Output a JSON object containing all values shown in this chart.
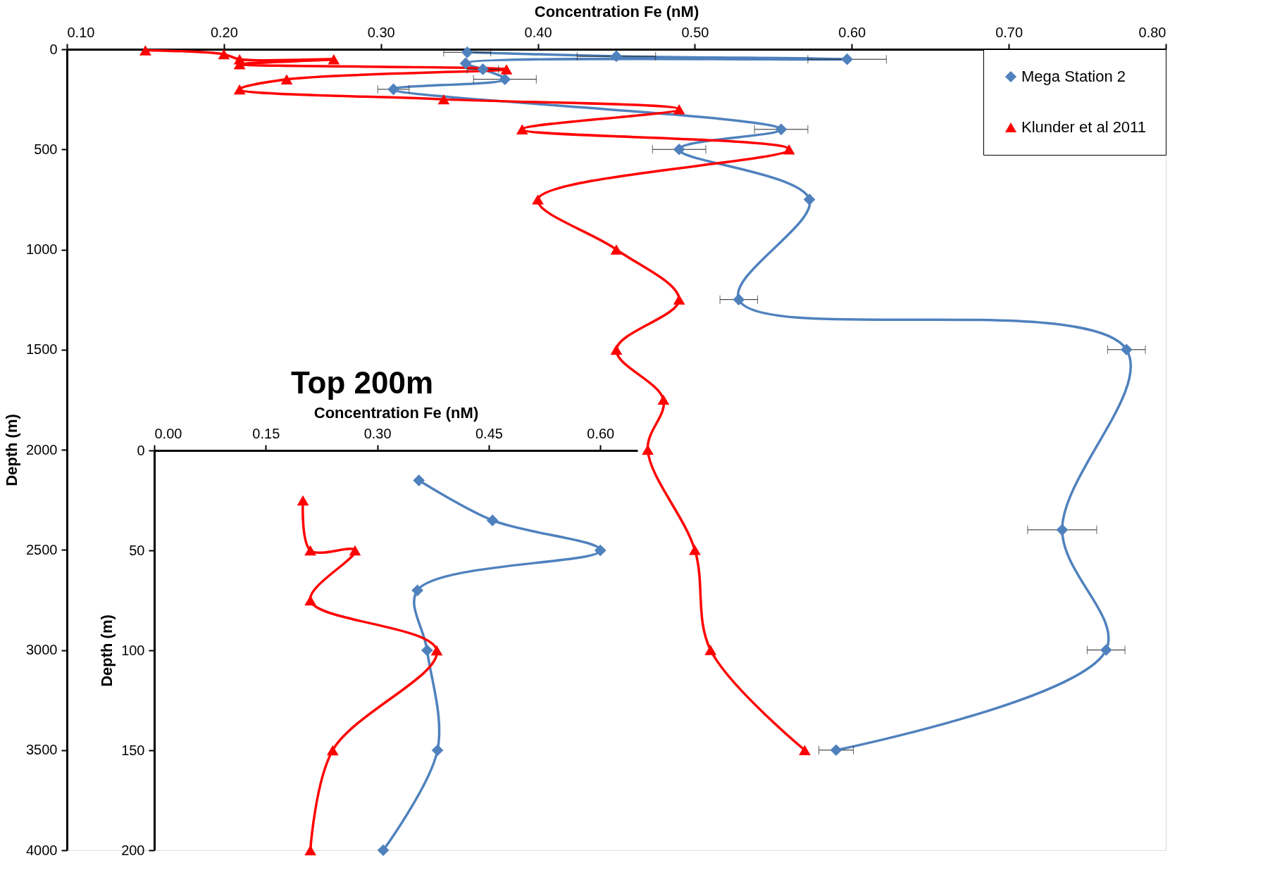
{
  "chart_data": [
    {
      "type": "line",
      "xlabel": "Concentration Fe (nM)",
      "ylabel": "Depth (m)",
      "xlim": [
        0.1,
        0.8
      ],
      "xticks": [
        {
          "value": 0.1,
          "label": "0.10"
        },
        {
          "value": 0.2,
          "label": "0.20"
        },
        {
          "value": 0.3,
          "label": "0.30"
        },
        {
          "value": 0.4,
          "label": "0.40"
        },
        {
          "value": 0.5,
          "label": "0.50"
        },
        {
          "value": 0.6,
          "label": "0.60"
        },
        {
          "value": 0.7,
          "label": "0.70"
        },
        {
          "value": 0.8,
          "label": "0.80"
        }
      ],
      "ylim": [
        4000,
        0
      ],
      "yticks": [
        0,
        500,
        1000,
        1500,
        2000,
        2500,
        3000,
        3500,
        4000
      ],
      "grid": false,
      "legend": "top right",
      "line_style": "solid",
      "series": [
        {
          "name": "Mega Station 2",
          "color": "#4f81bd",
          "marker": "diamond",
          "x": [
            0.355,
            0.45,
            0.597,
            0.354,
            0.365,
            0.379,
            0.308,
            0.555,
            0.49,
            0.573,
            0.528,
            0.775,
            0.734,
            0.762,
            0.59
          ],
          "values": [
            15,
            35,
            50,
            70,
            100,
            150,
            200,
            400,
            500,
            750,
            1250,
            1500,
            2400,
            3000,
            3500
          ],
          "xerrors": [
            0.015,
            0.025,
            0.025,
            null,
            0.01,
            0.02,
            0.01,
            0.017,
            0.017,
            null,
            0.012,
            0.012,
            0.022,
            0.012,
            0.011
          ]
        },
        {
          "name": "Klunder et al 2011",
          "color": "#ff0000",
          "marker": "triangle",
          "x": [
            0.15,
            0.2,
            0.21,
            0.27,
            0.21,
            0.38,
            0.24,
            0.21,
            0.34,
            0.49,
            0.39,
            0.56,
            0.4,
            0.45,
            0.49,
            0.45,
            0.48,
            0.47,
            0.5,
            0.51,
            0.57
          ],
          "values": [
            5,
            25,
            50,
            50,
            75,
            100,
            150,
            200,
            250,
            300,
            400,
            500,
            750,
            1000,
            1250,
            1500,
            1750,
            2000,
            2500,
            3000,
            3500
          ]
        }
      ]
    },
    {
      "type": "line",
      "title": "Top 200m",
      "xlabel": "Concentration Fe (nM)",
      "ylabel": "Depth (m)",
      "xlim": [
        0,
        0.65
      ],
      "xticks": [
        {
          "value": 0,
          "label": "0.00"
        },
        {
          "value": 0.15,
          "label": "0.15"
        },
        {
          "value": 0.3,
          "label": "0.30"
        },
        {
          "value": 0.45,
          "label": "0.45"
        },
        {
          "value": 0.6,
          "label": "0.60"
        }
      ],
      "ylim": [
        200,
        0
      ],
      "yticks": [
        0,
        50,
        100,
        150,
        200
      ],
      "grid": false,
      "line_style": "solid",
      "series": [
        {
          "color": "#4f81bd",
          "marker": "diamond",
          "x": [
            0.356,
            0.455,
            0.6,
            0.354,
            0.367,
            0.381,
            0.308
          ],
          "values": [
            15,
            35,
            50,
            70,
            100,
            150,
            200
          ]
        },
        {
          "color": "#ff0000",
          "marker": "triangle",
          "x": [
            0.2,
            0.21,
            0.27,
            0.21,
            0.38,
            0.24,
            0.21
          ],
          "values": [
            25,
            50,
            50,
            75,
            100,
            150,
            200
          ]
        }
      ]
    }
  ]
}
